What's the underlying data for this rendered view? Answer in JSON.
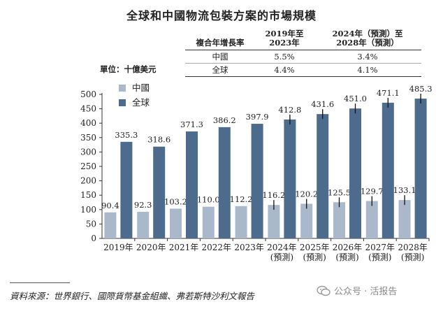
{
  "title": "全球和中國物流包裝方案的市場規模",
  "cagr_table": {
    "header_label": "複合年增長率",
    "col1": [
      "2019年至",
      "2023年"
    ],
    "col2": [
      "2024年（預測）至",
      "2028年（預測）"
    ],
    "rows": [
      {
        "name": "中國",
        "v1": "5.5%",
        "v2": "3.4%"
      },
      {
        "name": "全球",
        "v1": "4.4%",
        "v2": "4.1%"
      }
    ]
  },
  "unit_label": "單位：十億美元",
  "chart_data": {
    "type": "bar",
    "categories": [
      "2019年",
      "2020年",
      "2021年",
      "2022年",
      "2023年",
      "2024年\n(預測)",
      "2025年\n(預測)",
      "2026年\n(預測)",
      "2027年\n(預測)",
      "2028年\n(預測)"
    ],
    "series": [
      {
        "name": "中國",
        "color": "#a9b9cb",
        "values": [
          90.4,
          92.3,
          103.2,
          110.0,
          112.2,
          116.2,
          120.2,
          125.5,
          129.7,
          133.1
        ],
        "labels": [
          "90.4",
          "92.3",
          "103.2",
          "110.0",
          "112.2",
          "116.2",
          "120.2",
          "125.5",
          "129.7",
          "133.1"
        ]
      },
      {
        "name": "全球",
        "color": "#4d6b8d",
        "values": [
          335.3,
          318.6,
          371.3,
          386.2,
          397.9,
          412.8,
          431.6,
          451.0,
          471.1,
          485.3
        ],
        "labels": [
          "335.3",
          "318.6",
          "371.3",
          "386.2",
          "397.9",
          "412.8",
          "431.6",
          "451.0",
          "471.1",
          "485.3"
        ]
      }
    ],
    "error_bars_from_index": 5,
    "ylim": [
      0,
      500
    ],
    "yticks": [
      0,
      50,
      100,
      150,
      200,
      250,
      300,
      350,
      400,
      450,
      500
    ],
    "legend_position": "top-left",
    "grid": false
  },
  "source": "資料來源：世界銀行、國際貨幣基金組織、弗若斯特沙利文報告",
  "watermark": "公众号 · 活报告"
}
